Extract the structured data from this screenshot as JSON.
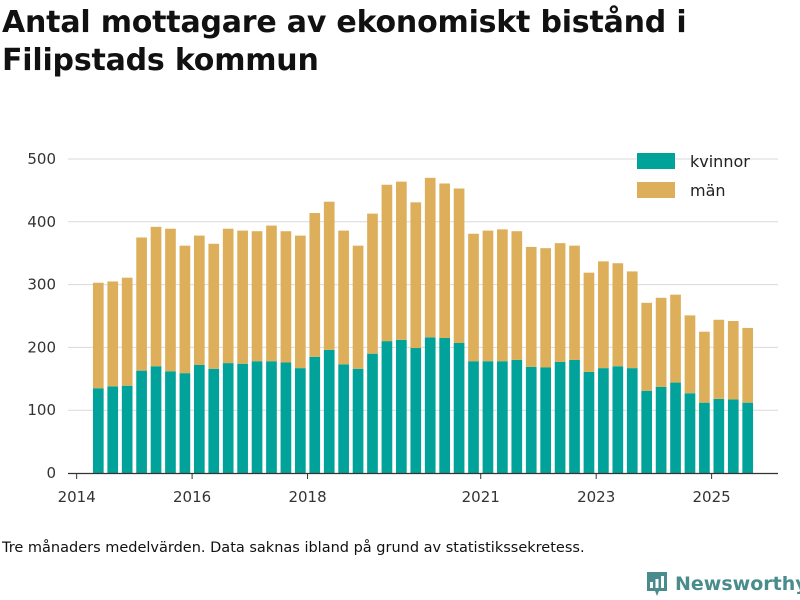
{
  "title": "Antal mottagare av ekonomiskt bistånd i Filipstads kommun",
  "footnote": "Tre månaders medelvärden. Data saknas ibland på grund av statistikssekretess.",
  "brand": {
    "name": "Newsworthy",
    "icon": "bar-chart-logo-icon"
  },
  "colors": {
    "kvinnor": "#00a29a",
    "man": "#ddaf5a",
    "grid": "#d9d9d9",
    "axis": "#333333"
  },
  "chart_data": {
    "type": "bar",
    "stacked": true,
    "title": "Antal mottagare av ekonomiskt bistånd i Filipstads kommun",
    "xlabel": "",
    "ylabel": "",
    "ylim": [
      0,
      500
    ],
    "yticks": [
      0,
      100,
      200,
      300,
      400,
      500
    ],
    "xlim": [
      2013.85,
      2026.15
    ],
    "xticks": [
      2014,
      2016,
      2018,
      2021,
      2023,
      2025
    ],
    "xtick_labels": [
      "2014",
      "2016",
      "2018",
      "2021",
      "2023",
      "2025"
    ],
    "grid": true,
    "legend_position": "top-right",
    "x": [
      2014.375,
      2014.625,
      2014.875,
      2015.125,
      2015.375,
      2015.625,
      2015.875,
      2016.125,
      2016.375,
      2016.625,
      2016.875,
      2017.125,
      2017.375,
      2017.625,
      2017.875,
      2018.125,
      2018.375,
      2018.625,
      2018.875,
      2019.125,
      2019.375,
      2019.625,
      2019.875,
      2020.125,
      2020.375,
      2020.625,
      2020.875,
      2021.125,
      2021.375,
      2021.625,
      2021.875,
      2022.125,
      2022.375,
      2022.625,
      2022.875,
      2023.125,
      2023.375,
      2023.625,
      2023.875,
      2024.125,
      2024.375,
      2024.625,
      2024.875,
      2025.125,
      2025.375,
      2025.625
    ],
    "series": [
      {
        "name": "kvinnor",
        "values": [
          135,
          138,
          139,
          163,
          170,
          162,
          159,
          172,
          166,
          175,
          174,
          178,
          178,
          176,
          167,
          185,
          196,
          173,
          166,
          190,
          210,
          212,
          199,
          216,
          215,
          207,
          178,
          178,
          178,
          180,
          169,
          168,
          177,
          180,
          161,
          167,
          170,
          167,
          131,
          137,
          144,
          127,
          112,
          118,
          117,
          112
        ]
      },
      {
        "name": "män",
        "values": [
          168,
          167,
          172,
          212,
          222,
          227,
          203,
          206,
          199,
          214,
          212,
          207,
          216,
          209,
          211,
          229,
          236,
          213,
          196,
          223,
          249,
          252,
          232,
          254,
          246,
          246,
          203,
          208,
          210,
          205,
          191,
          190,
          189,
          182,
          158,
          170,
          164,
          154,
          140,
          142,
          140,
          124,
          113,
          126,
          125,
          119
        ]
      }
    ]
  }
}
